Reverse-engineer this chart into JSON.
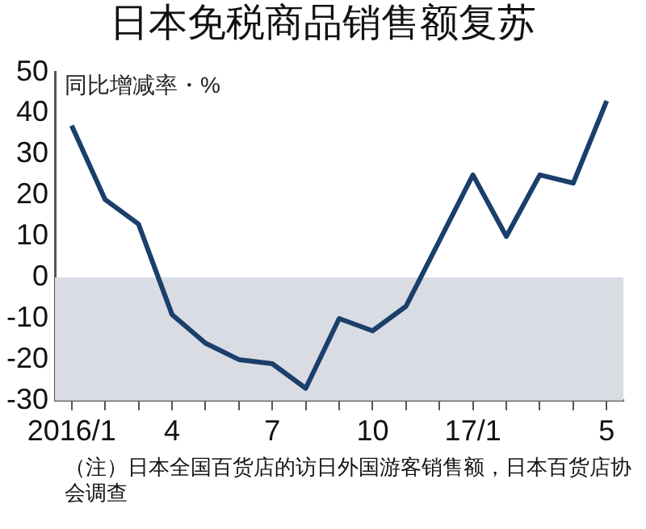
{
  "chart_data": {
    "type": "line",
    "title": "日本免税商品销售额复苏",
    "ylabel": "同比增减率・%",
    "annotations": [
      "（注）日本全国百货店的访日外国游客销售额，日本百货店协会调查"
    ],
    "categories": [
      "2016/1",
      null,
      null,
      "4",
      null,
      null,
      "7",
      null,
      null,
      "10",
      null,
      null,
      "17/1",
      null,
      null,
      null,
      "5"
    ],
    "series": [
      {
        "color": "#1b3f6b",
        "values": [
          37,
          19,
          13,
          -9,
          -16,
          -20,
          -21,
          -27,
          -10,
          -13,
          -7,
          9,
          25,
          10,
          25,
          23,
          43
        ]
      }
    ],
    "ylim": [
      -30,
      50
    ],
    "yticks": [
      -30,
      -20,
      -10,
      0,
      10,
      20,
      30,
      40,
      50
    ],
    "bands": [
      {
        "axis": "y",
        "from": -30,
        "to": 0,
        "color": "#d9dce3"
      }
    ],
    "grid": false,
    "legend": false,
    "marker": "none",
    "line_style": "solid"
  }
}
